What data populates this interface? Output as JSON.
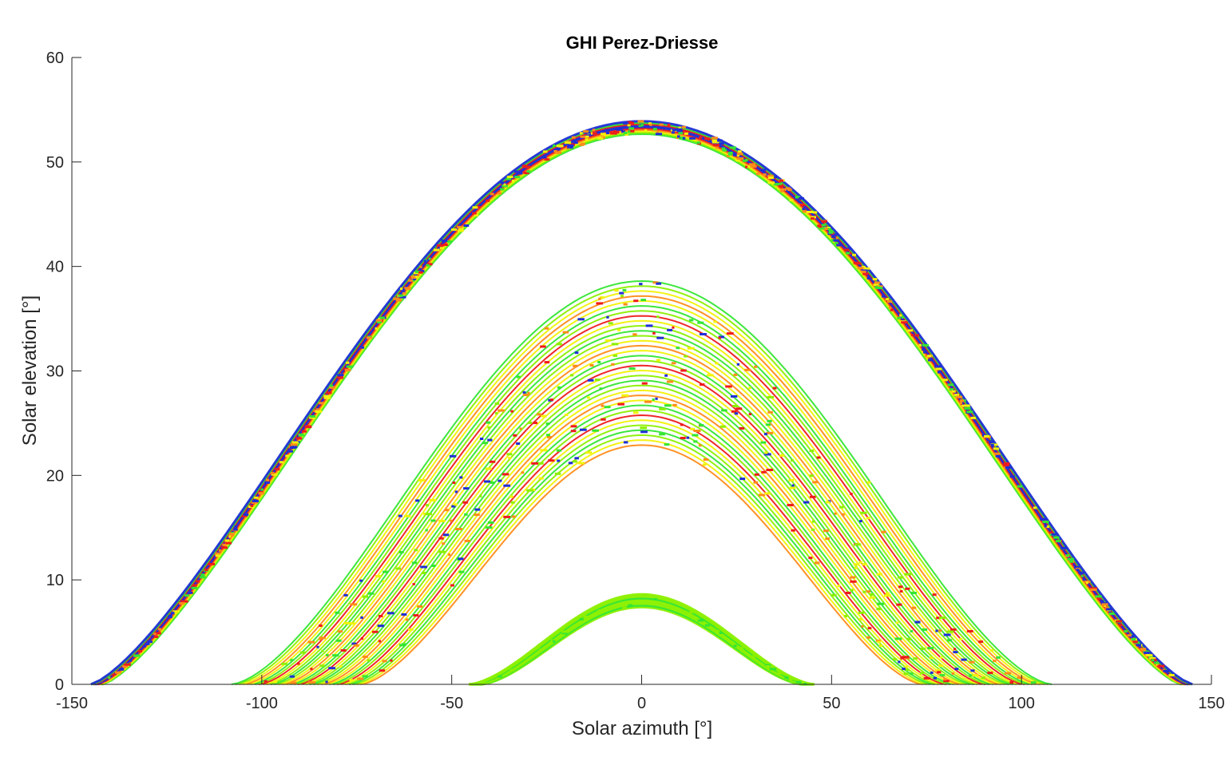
{
  "chart_data": {
    "type": "scatter",
    "title": "GHI Perez-Driesse",
    "xlabel": "Solar azimuth [°]",
    "ylabel": "Solar elevation [°]",
    "xlim": [
      -150,
      150
    ],
    "ylim": [
      0,
      60
    ],
    "xticks": [
      -150,
      -100,
      -50,
      0,
      50,
      100,
      150
    ],
    "yticks": [
      0,
      10,
      20,
      30,
      40,
      50,
      60
    ],
    "grid": false,
    "legend": "none",
    "colors": {
      "blue": "#1f2fd6",
      "red": "#ee1c1c",
      "orange": "#ff8c1a",
      "yellow": "#f2f20a",
      "lime": "#8cf000",
      "green": "#33e633"
    },
    "bands": [
      {
        "name": "",
        "apex_elevation_range": [
          52.7,
          53.9
        ],
        "zero_crossing_azimuth": [
          -143.5,
          143.5
        ],
        "dominant_colors": [
          "blue",
          "red",
          "green",
          "yellow",
          "orange"
        ]
      },
      {
        "name": "",
        "apex_elevation_range": [
          22.9,
          38.6
        ],
        "zero_crossing_azimuth": [
          -108,
          108
        ],
        "dominant_colors": [
          "lime",
          "yellow",
          "green",
          "orange",
          "red",
          "blue"
        ]
      },
      {
        "name": "",
        "apex_elevation_range": [
          7.4,
          8.6
        ],
        "zero_crossing_azimuth": [
          -44,
          44
        ],
        "dominant_colors": [
          "lime",
          "green"
        ]
      }
    ]
  }
}
